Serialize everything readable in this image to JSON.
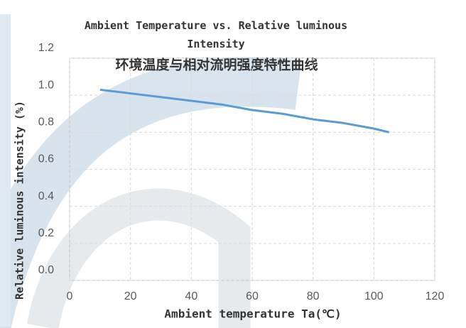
{
  "chart_data": {
    "type": "line",
    "title": "Ambient Temperature vs. Relative luminous Intensity",
    "subtitle": "环境温度与相对流明强度特性曲线",
    "x_label": "Ambient temperature Ta(℃)",
    "y_label": "Relative luminous intensity (%)",
    "x": [
      10,
      20,
      30,
      40,
      50,
      60,
      70,
      80,
      90,
      100,
      105
    ],
    "series": [
      {
        "name": "Relative luminous intensity",
        "color": "#5b9bd5",
        "values": [
          1.03,
          1.01,
          0.99,
          0.97,
          0.95,
          0.92,
          0.9,
          0.87,
          0.85,
          0.82,
          0.8
        ]
      }
    ],
    "xlim": [
      0,
      120
    ],
    "xticks": [
      0,
      20,
      40,
      60,
      80,
      100,
      120
    ],
    "ylim": [
      0,
      1.2
    ],
    "yticks": [
      {
        "value": 0,
        "label": "0.0"
      },
      0.2,
      0.4,
      0.6,
      0.8,
      {
        "value": 1,
        "label": "1.0"
      },
      1.2
    ],
    "grid": true
  }
}
